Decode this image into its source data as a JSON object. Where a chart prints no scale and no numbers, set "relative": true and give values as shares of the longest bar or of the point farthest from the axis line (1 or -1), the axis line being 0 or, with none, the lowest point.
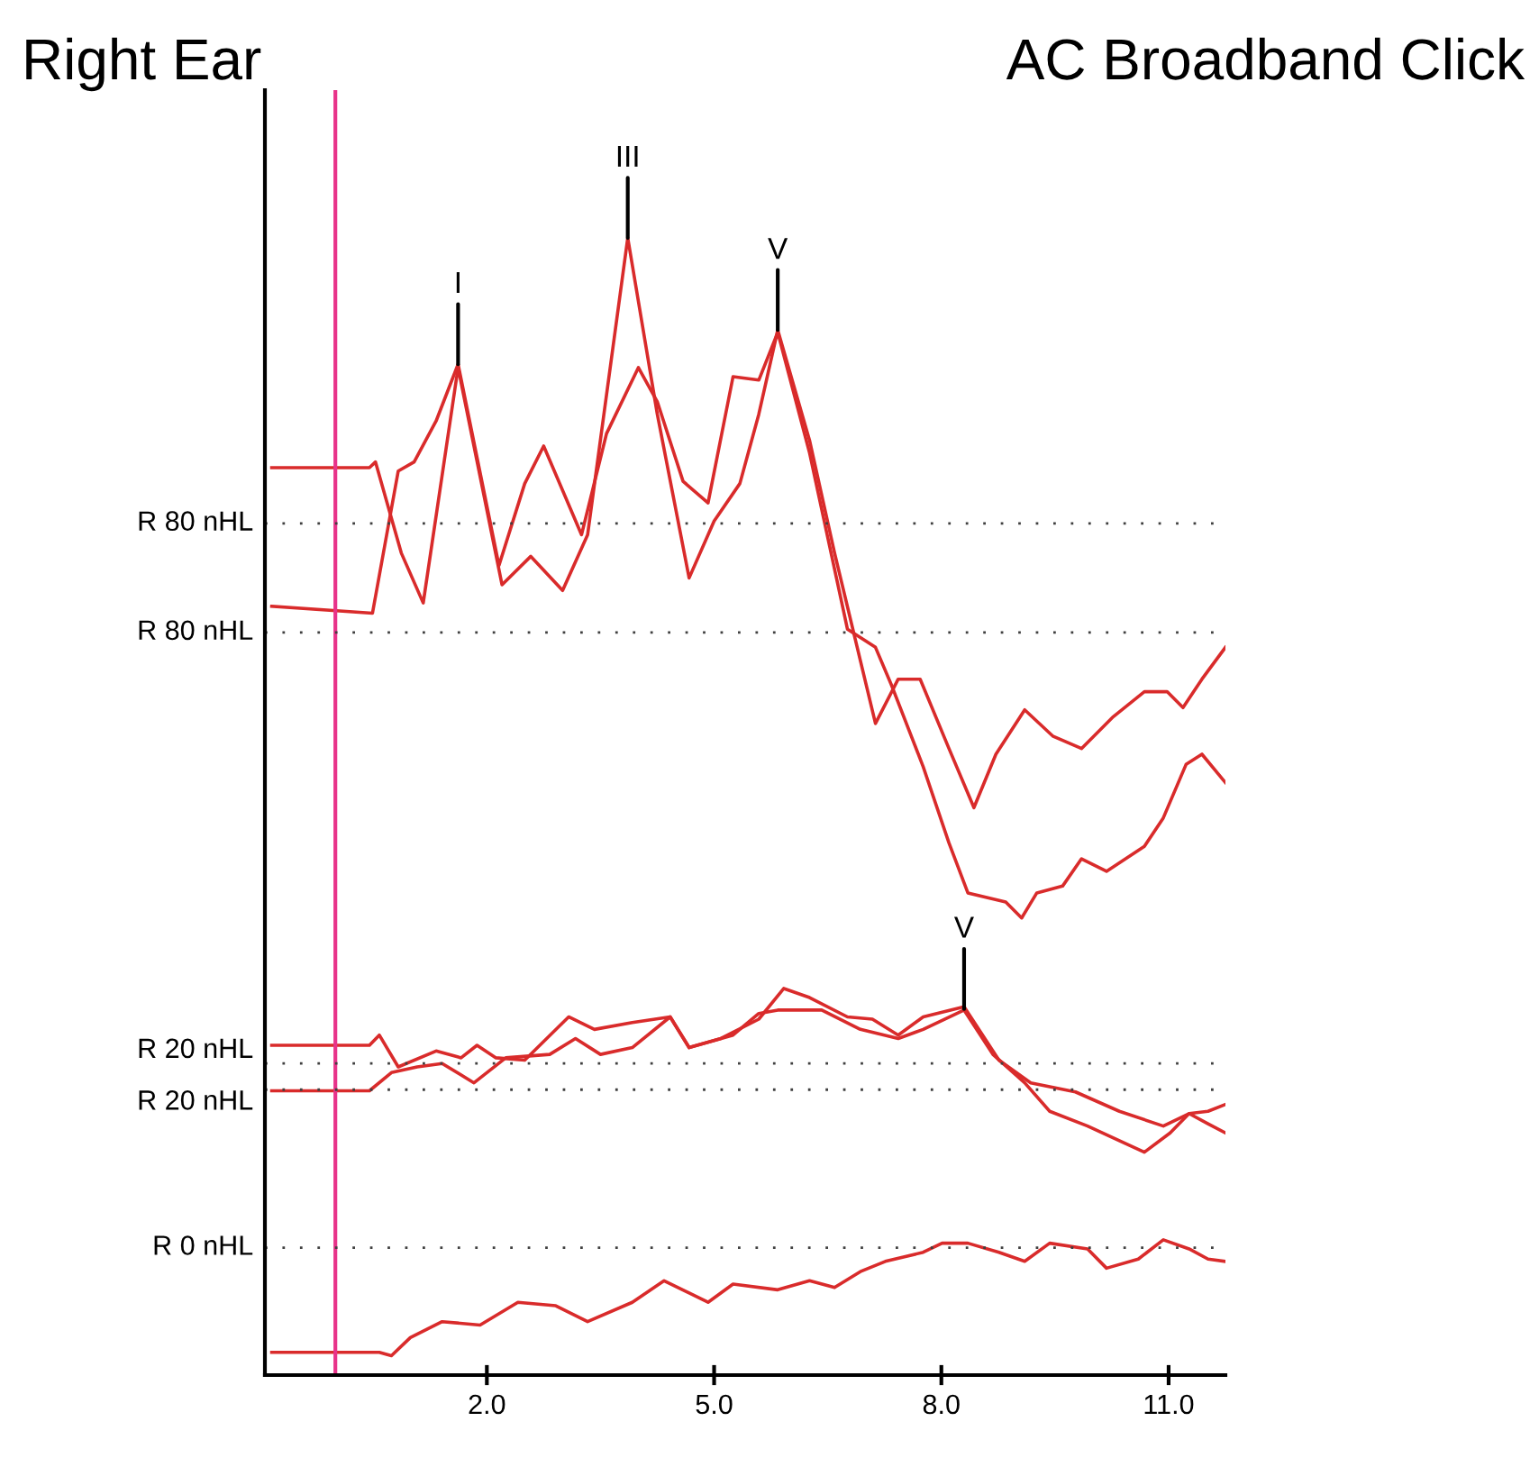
{
  "chart_data": {
    "type": "line",
    "title": "Right Ear",
    "subtitle": "AC Broadband Click",
    "relative": true,
    "xlim": [
      -0.93,
      11.75
    ],
    "xticks": [
      {
        "value": 2,
        "label": "2.0"
      },
      {
        "value": 5,
        "label": "5.0"
      },
      {
        "value": 8,
        "label": "8.0"
      },
      {
        "value": 11,
        "label": "11.0"
      }
    ],
    "grid": false,
    "legend": false,
    "marker": "none",
    "line_style": "solid",
    "series": [
      {
        "color": "#d92b2b",
        "x": [
          -0.84,
          0.45,
          0.53,
          0.87,
          1.16,
          1.62,
          2.2,
          2.58,
          3.0,
          3.33,
          3.86,
          4.25,
          4.67,
          5.0,
          5.34,
          5.59,
          5.84,
          6.26,
          6.59,
          7.13,
          7.43,
          7.72,
          8.1,
          8.43,
          8.72,
          9.1,
          9.47,
          9.85,
          10.27,
          10.68,
          10.98,
          11.19,
          11.44,
          11.75
        ],
        "values": [
          0.798,
          0.798,
          0.803,
          0.723,
          0.679,
          0.886,
          0.695,
          0.72,
          0.69,
          0.739,
          1.0,
          0.845,
          0.701,
          0.751,
          0.784,
          0.845,
          0.919,
          0.822,
          0.723,
          0.573,
          0.612,
          0.612,
          0.551,
          0.499,
          0.546,
          0.585,
          0.562,
          0.551,
          0.579,
          0.601,
          0.601,
          0.587,
          0.612,
          0.64
        ]
      },
      {
        "color": "#d92b2b",
        "x": [
          -0.84,
          0.49,
          0.83,
          1.04,
          1.33,
          1.62,
          2.16,
          2.5,
          2.75,
          3.25,
          3.58,
          4.0,
          4.25,
          4.59,
          4.92,
          5.25,
          5.59,
          5.84,
          6.26,
          6.76,
          7.13,
          7.34,
          7.76,
          8.1,
          8.35,
          8.85,
          9.06,
          9.26,
          9.6,
          9.85,
          10.18,
          10.68,
          10.93,
          11.23,
          11.44,
          11.75
        ],
        "values": [
          0.676,
          0.67,
          0.795,
          0.803,
          0.839,
          0.889,
          0.712,
          0.784,
          0.817,
          0.739,
          0.828,
          0.886,
          0.856,
          0.786,
          0.767,
          0.878,
          0.875,
          0.917,
          0.811,
          0.656,
          0.64,
          0.607,
          0.535,
          0.468,
          0.424,
          0.416,
          0.402,
          0.424,
          0.43,
          0.454,
          0.443,
          0.465,
          0.49,
          0.537,
          0.546,
          0.521
        ]
      },
      {
        "color": "#d92b2b",
        "x": [
          -0.84,
          0.45,
          0.58,
          0.83,
          1.33,
          1.66,
          1.87,
          2.12,
          2.5,
          3.08,
          3.42,
          3.92,
          4.42,
          4.67,
          5.09,
          5.59,
          5.92,
          6.26,
          6.76,
          7.09,
          7.43,
          7.76,
          8.3,
          8.76,
          9.18,
          9.77,
          10.35,
          10.93,
          11.27,
          11.52,
          11.75
        ],
        "values": [
          0.29,
          0.29,
          0.299,
          0.271,
          0.285,
          0.279,
          0.29,
          0.279,
          0.277,
          0.315,
          0.304,
          0.31,
          0.315,
          0.288,
          0.296,
          0.313,
          0.34,
          0.332,
          0.315,
          0.313,
          0.299,
          0.315,
          0.324,
          0.277,
          0.257,
          0.249,
          0.232,
          0.219,
          0.23,
          0.232,
          0.238
        ]
      },
      {
        "color": "#d92b2b",
        "x": [
          -0.84,
          0.45,
          0.74,
          1.08,
          1.41,
          1.83,
          2.25,
          2.83,
          3.17,
          3.5,
          3.92,
          4.42,
          4.67,
          5.25,
          5.59,
          5.84,
          6.42,
          6.93,
          7.43,
          7.76,
          8.3,
          8.68,
          9.1,
          9.43,
          9.93,
          10.68,
          11.02,
          11.27,
          11.52,
          11.75
        ],
        "values": [
          0.25,
          0.25,
          0.266,
          0.271,
          0.274,
          0.257,
          0.279,
          0.282,
          0.296,
          0.282,
          0.288,
          0.315,
          0.288,
          0.299,
          0.318,
          0.321,
          0.321,
          0.304,
          0.296,
          0.304,
          0.321,
          0.282,
          0.257,
          0.232,
          0.219,
          0.196,
          0.213,
          0.23,
          0.221,
          0.213
        ]
      },
      {
        "color": "#d92b2b",
        "x": [
          -0.84,
          0.58,
          0.74,
          0.99,
          1.41,
          1.91,
          2.41,
          2.91,
          3.33,
          3.92,
          4.34,
          4.92,
          5.25,
          5.84,
          6.26,
          6.59,
          6.93,
          7.26,
          7.76,
          8.01,
          8.35,
          8.76,
          9.1,
          9.43,
          9.93,
          10.18,
          10.6,
          10.93,
          11.27,
          11.52,
          11.75
        ],
        "values": [
          0.02,
          0.02,
          0.017,
          0.033,
          0.047,
          0.044,
          0.064,
          0.061,
          0.047,
          0.064,
          0.083,
          0.064,
          0.08,
          0.075,
          0.083,
          0.077,
          0.091,
          0.1,
          0.108,
          0.116,
          0.116,
          0.108,
          0.1,
          0.116,
          0.111,
          0.094,
          0.102,
          0.119,
          0.111,
          0.102,
          0.1
        ]
      }
    ],
    "ref_lines": [
      {
        "axis": "x",
        "value": 0,
        "color": "#e8338a",
        "line_style": "solid"
      },
      {
        "axis": "y",
        "value": 0.749,
        "label": "R 80 nHL",
        "color": "#404040",
        "line_style": "dotted"
      },
      {
        "axis": "y",
        "value": 0.653,
        "label": "R 80 nHL",
        "color": "#404040",
        "line_style": "dotted"
      },
      {
        "axis": "y",
        "value": 0.274,
        "label": "R 20 nHL",
        "color": "#404040",
        "line_style": "dotted"
      },
      {
        "axis": "y",
        "value": 0.251,
        "label": "R 20 nHL",
        "color": "#404040",
        "line_style": "dotted"
      },
      {
        "axis": "y",
        "value": 0.112,
        "label": "R 0 nHL",
        "color": "#404040",
        "line_style": "dotted"
      }
    ],
    "annotations": [
      {
        "text": "I",
        "x": 1.62,
        "y": 0.889
      },
      {
        "text": "III",
        "x": 3.86,
        "y": 1.0
      },
      {
        "text": "V",
        "x": 5.84,
        "y": 0.919
      },
      {
        "text": "V",
        "x": 8.3,
        "y": 0.322
      }
    ]
  }
}
